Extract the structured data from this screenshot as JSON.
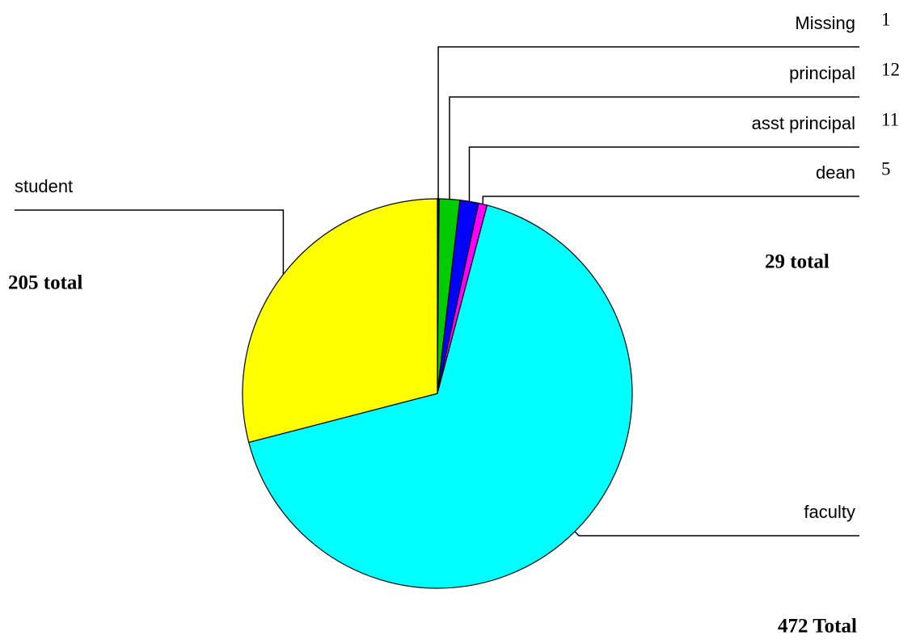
{
  "chart_data": {
    "type": "pie",
    "categories": [
      "Missing",
      "principal",
      "asst principal",
      "dean",
      "faculty",
      "student"
    ],
    "values": [
      1,
      12,
      11,
      5,
      472,
      205
    ],
    "colors": [
      "#000000",
      "#00cc00",
      "#0000ff",
      "#ff00ff",
      "#00ffff",
      "#ffff00"
    ],
    "annotations": [
      "205 total",
      "29 total",
      "472 Total"
    ]
  }
}
